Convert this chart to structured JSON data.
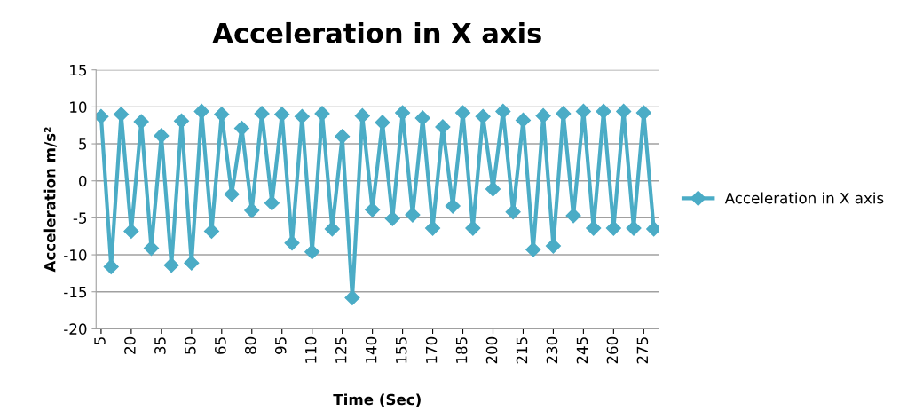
{
  "chart_data": {
    "type": "line",
    "title": "Acceleration in X axis",
    "xlabel": "Time (Sec)",
    "ylabel": "Acceleration m/s²",
    "categories": [
      "5",
      null,
      null,
      "20",
      null,
      null,
      "35",
      null,
      null,
      "50",
      null,
      null,
      "65",
      null,
      null,
      "80",
      null,
      null,
      "95",
      null,
      null,
      "110",
      null,
      null,
      "125",
      null,
      null,
      "140",
      null,
      null,
      "155",
      null,
      null,
      "170",
      null,
      null,
      "185",
      null,
      null,
      "200",
      null,
      null,
      "215",
      null,
      null,
      "230",
      null,
      null,
      "245",
      null,
      null,
      "260",
      null,
      null,
      "275",
      null
    ],
    "series": [
      {
        "name": "Acceleration in X axis",
        "color": "#4bacc6",
        "values": [
          8.7,
          -11.6,
          9.0,
          -6.8,
          8.0,
          -9.1,
          6.1,
          -11.4,
          8.1,
          -11.1,
          9.4,
          -6.8,
          9.0,
          -1.8,
          7.1,
          -4.0,
          9.1,
          -3.0,
          9.0,
          -8.4,
          8.7,
          -9.6,
          9.1,
          -6.5,
          6.0,
          -15.8,
          8.8,
          -3.9,
          7.9,
          -5.1,
          9.2,
          -4.6,
          8.5,
          -6.4,
          7.3,
          -3.4,
          9.2,
          -6.4,
          8.7,
          -1.1,
          9.4,
          -4.2,
          8.2,
          -9.3,
          8.8,
          -8.8,
          9.1,
          -4.7,
          9.4,
          -6.4,
          9.4,
          -6.4,
          9.4,
          -6.4,
          9.2,
          -6.5
        ]
      }
    ],
    "ylim": [
      -20,
      15
    ],
    "yticks": [
      -20,
      -15,
      -10,
      -5,
      0,
      5,
      10,
      15
    ],
    "grid": "y",
    "legend": "right",
    "marker": "diamond",
    "line_style": "solid"
  }
}
